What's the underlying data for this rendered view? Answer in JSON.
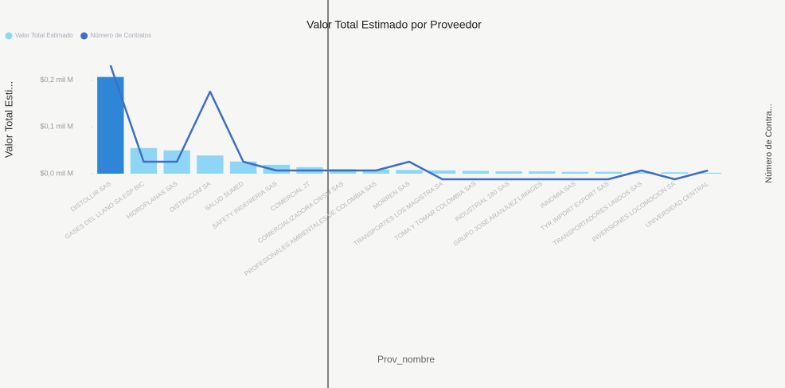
{
  "chart_data": {
    "type": "bar-line",
    "title": "Valor Total Estimado por Proveedor",
    "x_label": "Prov_nombre",
    "y_label": "Valor Total Esti...",
    "y2_label": "Número de Contra...",
    "categories": [
      "DISTOLLIR SAS",
      "GASES DEL LLANO SA ESP BIC",
      "HIDROPLANAS SAS",
      "DISTRACOM SA",
      "SALUD SUMED",
      "SAFETY INGENIERIA SAS",
      "COMERCIAL JT",
      "COMERCIALIZADORA CRISM SAS",
      "PROFESIONALES AMBIENTALES DE COLOMBIA SAS",
      "MORREN SAS",
      "TRANSPORTES LOS MAGISTRA SA",
      "TOMA Y TOMAR COLOMBIA SAS",
      "INDUSTRIAL 180 SAS",
      "GRUPO JOSE ARANJUEZ LIMAGES",
      "INNOMIA SAS",
      "TYR IMPORT EXPORT SAS",
      "TRANSPORTADORES UNIDOS SAS",
      "INVERSIONES LOCOMOCION SA",
      "UNIVERSIDAD CENTRAL"
    ],
    "series": [
      {
        "name": "Valor Total Estimado",
        "color": "#8fd6f6",
        "highlight_color": "#2f86d6",
        "type": "bar",
        "values": [
          0.207,
          0.055,
          0.05,
          0.039,
          0.026,
          0.019,
          0.014,
          0.01,
          0.009,
          0.008,
          0.007,
          0.006,
          0.005,
          0.005,
          0.004,
          0.004,
          0.003,
          0.003,
          0.002
        ]
      },
      {
        "name": "Número de Contratos",
        "color": "#3e6fc4",
        "type": "line",
        "axis": "y2",
        "values": [
          14,
          3,
          3,
          11,
          3,
          2,
          2,
          2,
          2,
          3,
          1,
          1,
          1,
          1,
          1,
          1,
          2,
          1,
          2
        ]
      }
    ],
    "ylim": [
      0,
      0.22
    ],
    "yticks": [
      {
        "value": 0,
        "label": "$0,0 mil M"
      },
      {
        "value": 0.1,
        "label": "$0,1 mil M"
      },
      {
        "value": 0.2,
        "label": "$0,2 mil M"
      }
    ],
    "y2lim": [
      0,
      16
    ],
    "grid": false
  }
}
